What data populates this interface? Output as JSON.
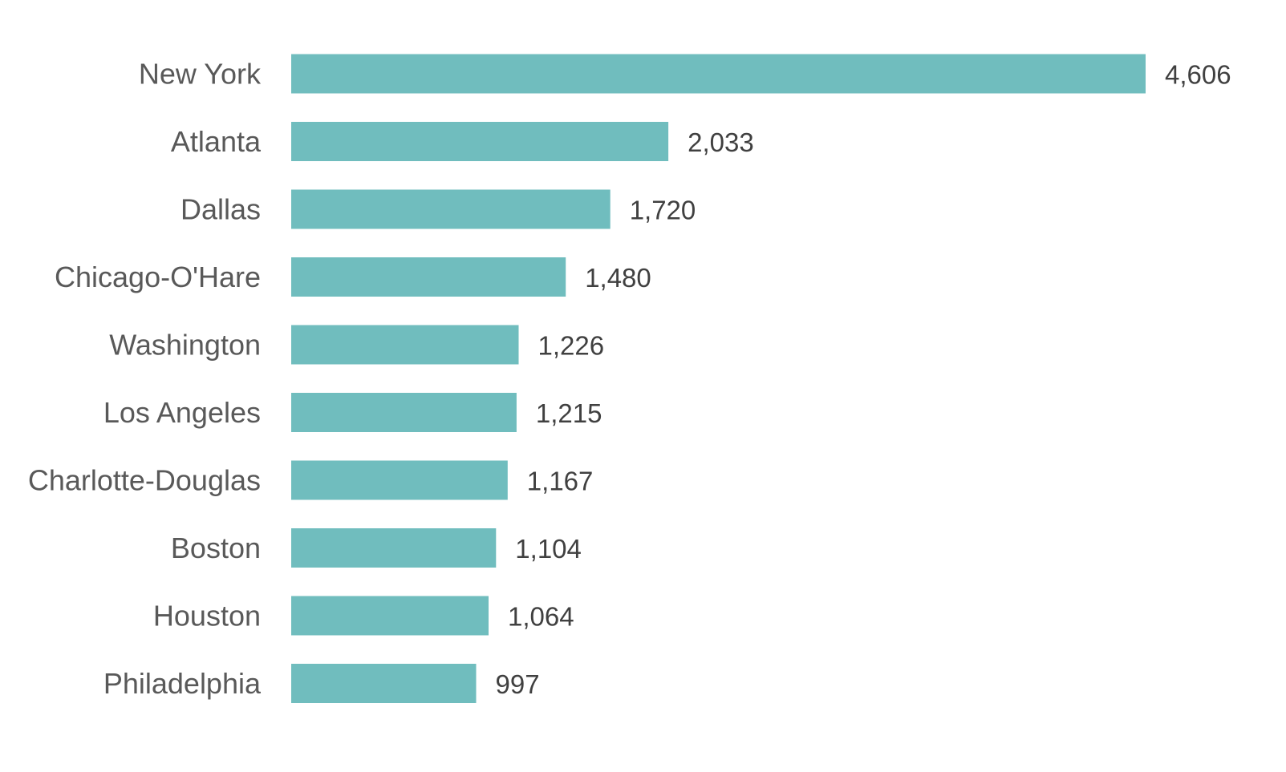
{
  "chart_data": {
    "type": "bar",
    "orientation": "horizontal",
    "title": "",
    "xlabel": "",
    "ylabel": "",
    "categories": [
      "New York",
      "Atlanta",
      "Dallas",
      "Chicago-O'Hare",
      "Washington",
      "Los Angeles",
      "Charlotte-Douglas",
      "Boston",
      "Houston",
      "Philadelphia"
    ],
    "values": [
      4606,
      2033,
      1720,
      1480,
      1226,
      1215,
      1167,
      1104,
      1064,
      997
    ],
    "value_labels": [
      "4,606",
      "2,033",
      "1,720",
      "1,480",
      "1,226",
      "1,215",
      "1,167",
      "1,104",
      "1,064",
      "997"
    ],
    "xlim": [
      0,
      4606
    ],
    "grid": false,
    "legend": "none",
    "colors": {
      "bar": "#70BDBE",
      "category_text": "#595959",
      "value_text": "#404040"
    }
  }
}
